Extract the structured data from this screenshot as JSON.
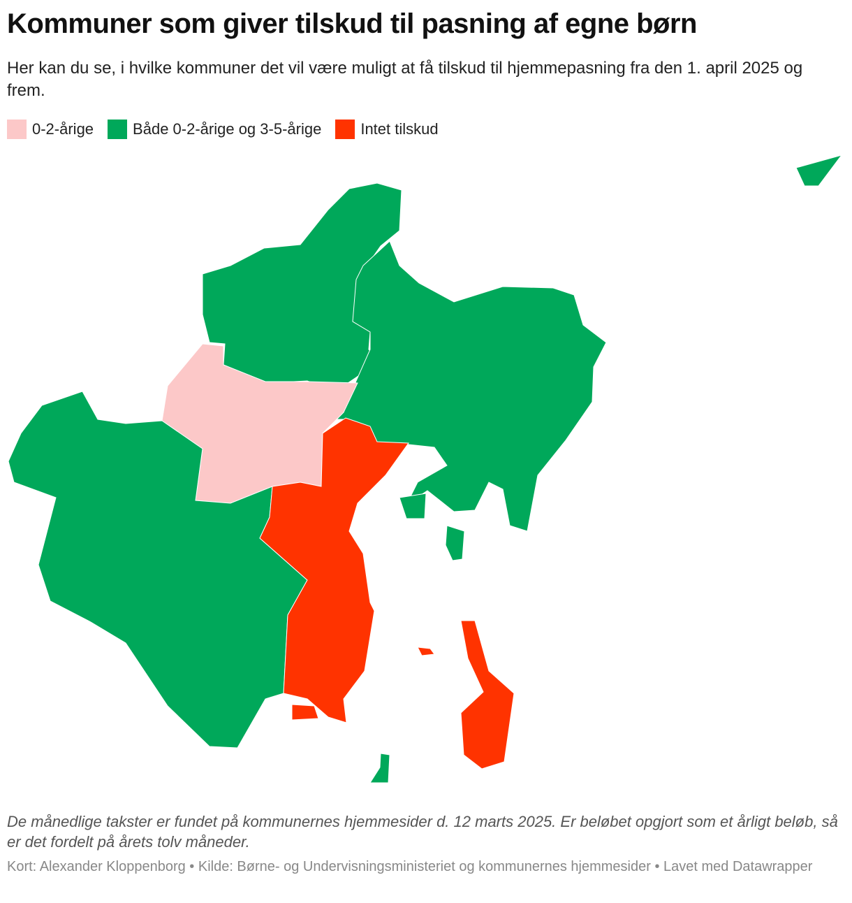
{
  "header": {
    "title": "Kommuner som giver tilskud til pasning af egne børn",
    "subtitle": "Her kan du se, i hvilke kommuner det vil være muligt at få tilskud til hjemmepasning fra den 1. april 2025 og frem."
  },
  "legend": [
    {
      "name": "0-2-årige",
      "color": "#fcc8c8"
    },
    {
      "name": "Både 0-2-årige og 3-5-årige",
      "color": "#00a85a"
    },
    {
      "name": "Intet tilskud",
      "color": "#ff3300"
    }
  ],
  "note": "De månedlige takster er fundet på kommunernes hjemmesider d. 12 marts 2025. Er beløbet opgjort som et årligt beløb, så er det fordelt på årets tolv måneder.",
  "footer": "Kort: Alexander Kloppenborg • Kilde: Børne- og Undervisningsministeriet og kommunernes hjemmesider • Lavet med Datawrapper"
}
